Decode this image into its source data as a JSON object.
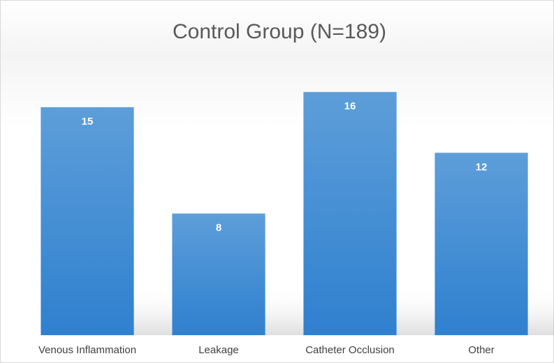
{
  "chart_data": {
    "type": "bar",
    "title": "Control Group (N=189)",
    "categories": [
      "Venous Inflammation",
      "Leakage",
      "Catheter Occlusion",
      "Other"
    ],
    "values": [
      15,
      8,
      16,
      12
    ],
    "color": "#4a8fd6"
  }
}
